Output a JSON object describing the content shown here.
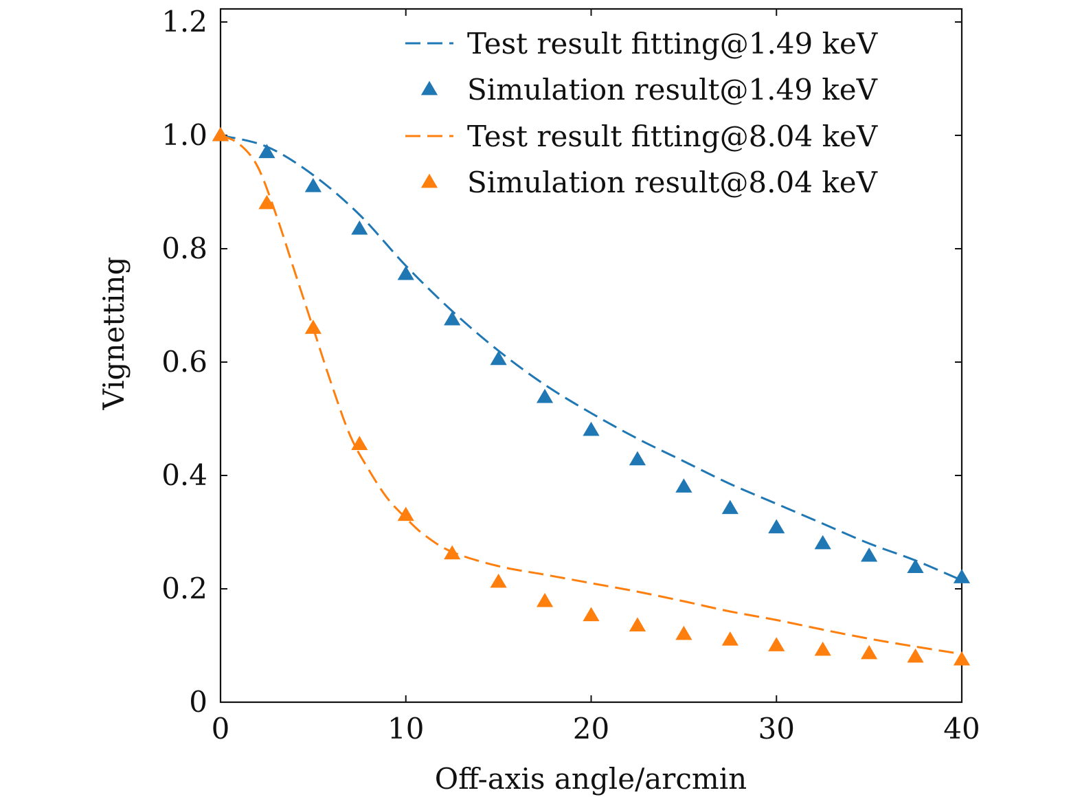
{
  "chart_data": {
    "type": "line",
    "xlabel": "Off-axis angle/arcmin",
    "ylabel": "Vignetting",
    "xlim": [
      0,
      40
    ],
    "ylim": [
      0,
      1.22
    ],
    "xticks": [
      0,
      10,
      20,
      30,
      40
    ],
    "xtick_labels": [
      "0",
      "10",
      "20",
      "30",
      "40"
    ],
    "yticks": [
      0,
      0.2,
      0.4,
      0.6,
      0.8,
      1.0,
      1.2
    ],
    "ytick_labels": [
      "0",
      "0.2",
      "0.4",
      "0.6",
      "0.8",
      "1.0",
      "1.2"
    ],
    "grid": false,
    "legend_position": "top-right",
    "series": [
      {
        "name": "Test result fitting@1.49 keV",
        "kind": "dashed-line",
        "color": "#1f77b4",
        "x": [
          0,
          2.5,
          5,
          7.5,
          10,
          12.5,
          15,
          17.5,
          20,
          22.5,
          25,
          27.5,
          30,
          32.5,
          35,
          37.5,
          40
        ],
        "y": [
          1.0,
          0.98,
          0.93,
          0.86,
          0.77,
          0.69,
          0.62,
          0.56,
          0.51,
          0.465,
          0.425,
          0.385,
          0.35,
          0.315,
          0.28,
          0.25,
          0.215
        ]
      },
      {
        "name": "Simulation result@1.49 keV",
        "kind": "triangle-marker",
        "color": "#1f77b4",
        "x": [
          0,
          2.5,
          5,
          7.5,
          10,
          12.5,
          15,
          17.5,
          20,
          22.5,
          25,
          27.5,
          30,
          32.5,
          35,
          37.5,
          40
        ],
        "y": [
          1.0,
          0.97,
          0.91,
          0.835,
          0.755,
          0.675,
          0.605,
          0.538,
          0.48,
          0.428,
          0.38,
          0.342,
          0.308,
          0.28,
          0.258,
          0.238,
          0.22
        ]
      },
      {
        "name": "Test result fitting@8.04 keV",
        "kind": "dashed-line",
        "color": "#ff7f0e",
        "x": [
          0,
          1,
          2,
          3,
          4,
          5,
          6,
          7,
          8,
          9,
          10,
          11,
          12.5,
          15,
          17.5,
          20,
          22.5,
          25,
          27.5,
          30,
          32.5,
          35,
          37.5,
          40
        ],
        "y": [
          1.0,
          0.985,
          0.945,
          0.86,
          0.76,
          0.66,
          0.56,
          0.47,
          0.41,
          0.36,
          0.325,
          0.295,
          0.265,
          0.24,
          0.225,
          0.21,
          0.195,
          0.178,
          0.16,
          0.145,
          0.128,
          0.112,
          0.098,
          0.085
        ]
      },
      {
        "name": "Simulation result@8.04 keV",
        "kind": "triangle-marker",
        "color": "#ff7f0e",
        "x": [
          0,
          2.5,
          5,
          7.5,
          10,
          12.5,
          15,
          17.5,
          20,
          22.5,
          25,
          27.5,
          30,
          32.5,
          35,
          37.5,
          40
        ],
        "y": [
          1.0,
          0.88,
          0.66,
          0.455,
          0.33,
          0.262,
          0.212,
          0.178,
          0.153,
          0.135,
          0.12,
          0.11,
          0.1,
          0.092,
          0.086,
          0.08,
          0.075
        ]
      }
    ]
  }
}
